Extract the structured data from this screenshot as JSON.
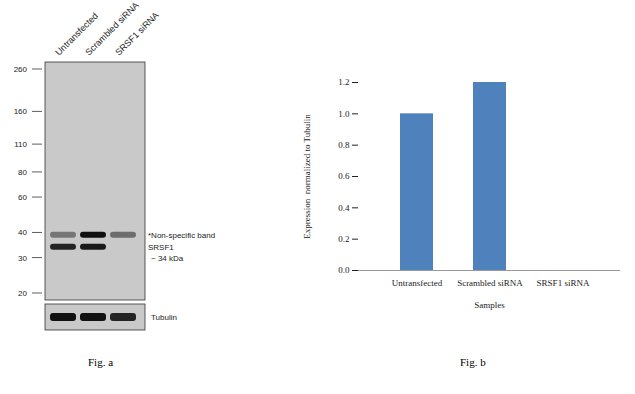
{
  "blot": {
    "caption": "Fig. a",
    "lanes": [
      "Untransfected",
      "Scrambled siRNA",
      "SRSF1 siRNA"
    ],
    "markers": [
      260,
      160,
      110,
      80,
      60,
      40,
      30,
      20
    ],
    "bands": [
      {
        "label": "*Non-specific band",
        "kda": 39,
        "intensity": [
          0.45,
          1,
          0.5
        ]
      },
      {
        "label": "SRSF1",
        "sublabel": "~ 34 kDa",
        "kda": 34,
        "intensity": [
          0.9,
          0.95,
          0
        ]
      }
    ],
    "loading_control": {
      "label": "Tubulin",
      "intensity": [
        1,
        1,
        0.9
      ]
    }
  },
  "chart_data": {
    "type": "bar",
    "caption": "Fig. b",
    "categories": [
      "Untransfected",
      "Scrambled siRNA",
      "SRSF1 siRNA"
    ],
    "values": [
      1,
      1.2,
      0
    ],
    "color": "#4f81bd",
    "x_label": "Samples",
    "y_label": "Expression  normalized to Tubulin",
    "ylim": [
      0,
      1.2
    ],
    "yticks": [
      0,
      0.2,
      0.4,
      0.6,
      0.8,
      1,
      1.2
    ],
    "grid": false
  }
}
